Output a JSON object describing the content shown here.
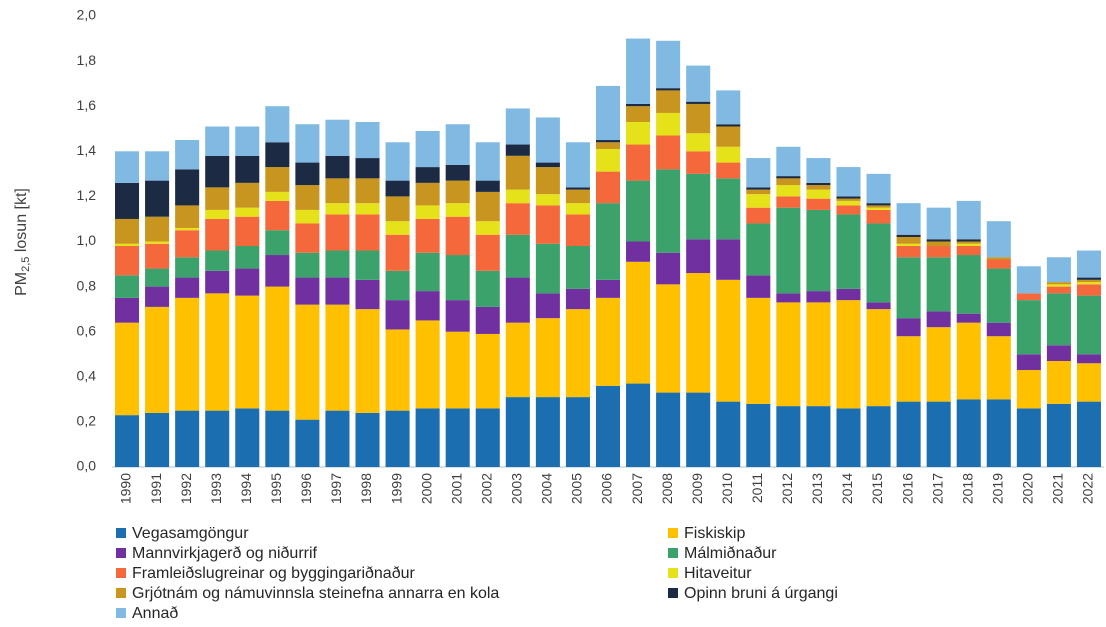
{
  "chart_data": {
    "type": "stacked_bar",
    "ylabel": {
      "main": "PM",
      "sub": "2,5",
      "rest": " losun [kt]"
    },
    "categories": [
      "1990",
      "1991",
      "1992",
      "1993",
      "1994",
      "1995",
      "1996",
      "1997",
      "1998",
      "1999",
      "2000",
      "2001",
      "2002",
      "2003",
      "2004",
      "2005",
      "2006",
      "2007",
      "2008",
      "2009",
      "2010",
      "2011",
      "2012",
      "2013",
      "2014",
      "2015",
      "2016",
      "2017",
      "2018",
      "2019",
      "2020",
      "2021",
      "2022"
    ],
    "ylim": [
      0,
      2
    ],
    "yticks": [
      {
        "value": 0,
        "label": "0,0"
      },
      {
        "value": 0.2,
        "label": "0,2"
      },
      {
        "value": 0.4,
        "label": "0,4"
      },
      {
        "value": 0.6,
        "label": "0,6"
      },
      {
        "value": 0.8,
        "label": "0,8"
      },
      {
        "value": 1,
        "label": "1,0"
      },
      {
        "value": 1.2,
        "label": "1,2"
      },
      {
        "value": 1.4,
        "label": "1,4"
      },
      {
        "value": 1.6,
        "label": "1,6"
      },
      {
        "value": 1.8,
        "label": "1,8"
      },
      {
        "value": 2,
        "label": "2,0"
      }
    ],
    "series": [
      {
        "name": "Vegasamgöngur",
        "color": "#1b6fb1",
        "values": [
          0.23,
          0.24,
          0.25,
          0.25,
          0.26,
          0.25,
          0.21,
          0.25,
          0.24,
          0.25,
          0.26,
          0.26,
          0.26,
          0.31,
          0.31,
          0.31,
          0.36,
          0.37,
          0.33,
          0.33,
          0.29,
          0.28,
          0.27,
          0.27,
          0.26,
          0.27,
          0.29,
          0.29,
          0.3,
          0.3,
          0.26,
          0.28,
          0.29
        ]
      },
      {
        "name": "Fiskiskip",
        "color": "#ffc000",
        "values": [
          0.41,
          0.47,
          0.5,
          0.52,
          0.5,
          0.55,
          0.51,
          0.47,
          0.46,
          0.36,
          0.39,
          0.34,
          0.33,
          0.33,
          0.35,
          0.39,
          0.39,
          0.54,
          0.48,
          0.53,
          0.54,
          0.47,
          0.46,
          0.46,
          0.48,
          0.43,
          0.29,
          0.33,
          0.34,
          0.28,
          0.17,
          0.19,
          0.17
        ]
      },
      {
        "name": "Mannvirkjagerð og niðurrif",
        "color": "#7030a0",
        "values": [
          0.11,
          0.09,
          0.09,
          0.1,
          0.12,
          0.14,
          0.12,
          0.12,
          0.13,
          0.13,
          0.13,
          0.14,
          0.12,
          0.2,
          0.11,
          0.09,
          0.08,
          0.09,
          0.14,
          0.15,
          0.18,
          0.1,
          0.04,
          0.05,
          0.05,
          0.03,
          0.08,
          0.07,
          0.04,
          0.06,
          0.07,
          0.07,
          0.04
        ]
      },
      {
        "name": "Málmiðnaður",
        "color": "#3ba26b",
        "values": [
          0.1,
          0.08,
          0.09,
          0.09,
          0.1,
          0.11,
          0.11,
          0.12,
          0.13,
          0.13,
          0.17,
          0.2,
          0.16,
          0.19,
          0.22,
          0.19,
          0.34,
          0.27,
          0.37,
          0.29,
          0.27,
          0.23,
          0.38,
          0.36,
          0.33,
          0.35,
          0.27,
          0.24,
          0.26,
          0.24,
          0.24,
          0.23,
          0.26
        ]
      },
      {
        "name": "Framleiðslugreinar og byggingariðnaður",
        "color": "#f5683c",
        "values": [
          0.13,
          0.11,
          0.12,
          0.14,
          0.13,
          0.13,
          0.13,
          0.16,
          0.16,
          0.16,
          0.15,
          0.17,
          0.16,
          0.14,
          0.17,
          0.14,
          0.14,
          0.16,
          0.15,
          0.1,
          0.07,
          0.07,
          0.05,
          0.05,
          0.04,
          0.06,
          0.05,
          0.05,
          0.04,
          0.04,
          0.03,
          0.03,
          0.05
        ]
      },
      {
        "name": "Hitaveitur",
        "color": "#e6e21a",
        "values": [
          0.01,
          0.01,
          0.01,
          0.04,
          0.04,
          0.04,
          0.06,
          0.05,
          0.05,
          0.06,
          0.06,
          0.06,
          0.06,
          0.06,
          0.05,
          0.05,
          0.1,
          0.1,
          0.1,
          0.08,
          0.07,
          0.06,
          0.05,
          0.04,
          0.02,
          0.01,
          0.01,
          0,
          0.01,
          0,
          0,
          0.01,
          0.01
        ]
      },
      {
        "name": "Grjótnám og námuvinnsla steinefna annarra en kola",
        "color": "#c8961e",
        "values": [
          0.11,
          0.11,
          0.1,
          0.1,
          0.11,
          0.11,
          0.11,
          0.11,
          0.11,
          0.11,
          0.1,
          0.1,
          0.13,
          0.15,
          0.12,
          0.06,
          0.03,
          0.07,
          0.1,
          0.13,
          0.09,
          0.02,
          0.03,
          0.02,
          0.01,
          0.01,
          0.03,
          0.02,
          0.01,
          0.01,
          0,
          0.01,
          0.01
        ]
      },
      {
        "name": "Opinn bruni á úrgangi",
        "color": "#1c2a44",
        "values": [
          0.16,
          0.16,
          0.16,
          0.14,
          0.12,
          0.11,
          0.1,
          0.1,
          0.09,
          0.07,
          0.07,
          0.07,
          0.05,
          0.05,
          0.02,
          0.01,
          0.01,
          0.01,
          0.01,
          0.01,
          0.01,
          0.01,
          0.01,
          0.01,
          0.01,
          0.01,
          0.01,
          0.01,
          0.01,
          0,
          0,
          0,
          0.01
        ]
      },
      {
        "name": "Annað",
        "color": "#80b9e2",
        "values": [
          0.14,
          0.13,
          0.13,
          0.13,
          0.13,
          0.16,
          0.17,
          0.16,
          0.16,
          0.17,
          0.16,
          0.18,
          0.17,
          0.16,
          0.2,
          0.2,
          0.24,
          0.29,
          0.21,
          0.16,
          0.15,
          0.13,
          0.13,
          0.11,
          0.13,
          0.13,
          0.14,
          0.14,
          0.17,
          0.16,
          0.12,
          0.11,
          0.12
        ]
      }
    ]
  }
}
